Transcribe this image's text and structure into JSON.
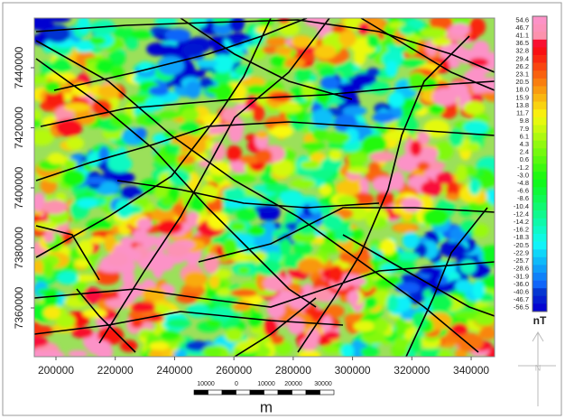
{
  "map": {
    "xticks": [
      200000,
      220000,
      240000,
      260000,
      280000,
      300000,
      320000,
      340000
    ],
    "yticks": [
      7360000,
      7380000,
      7400000,
      7420000,
      7440000
    ],
    "xlim": [
      192700,
      347900
    ],
    "ylim": [
      7343760,
      7456540
    ]
  },
  "legend": {
    "labels": [
      "54.6",
      "46.7",
      "41.1",
      "36.5",
      "32.8",
      "29.4",
      "26.2",
      "23.1",
      "20.5",
      "18.0",
      "15.9",
      "13.8",
      "11.7",
      "9.8",
      "7.9",
      "6.1",
      "4.3",
      "2.4",
      "0.6",
      "-1.2",
      "-3.0",
      "-4.8",
      "-6.6",
      "-8.6",
      "-10.4",
      "-12.4",
      "-14.2",
      "-16.2",
      "-18.3",
      "-20.5",
      "-22.9",
      "-25.7",
      "-28.6",
      "-31.9",
      "-36.0",
      "-40.6",
      "-46.7",
      "-56.5"
    ],
    "unit": "nT"
  },
  "scale_bar": {
    "labels": [
      "10000",
      "0",
      "10000",
      "20000",
      "30000"
    ],
    "unit": "m"
  }
}
